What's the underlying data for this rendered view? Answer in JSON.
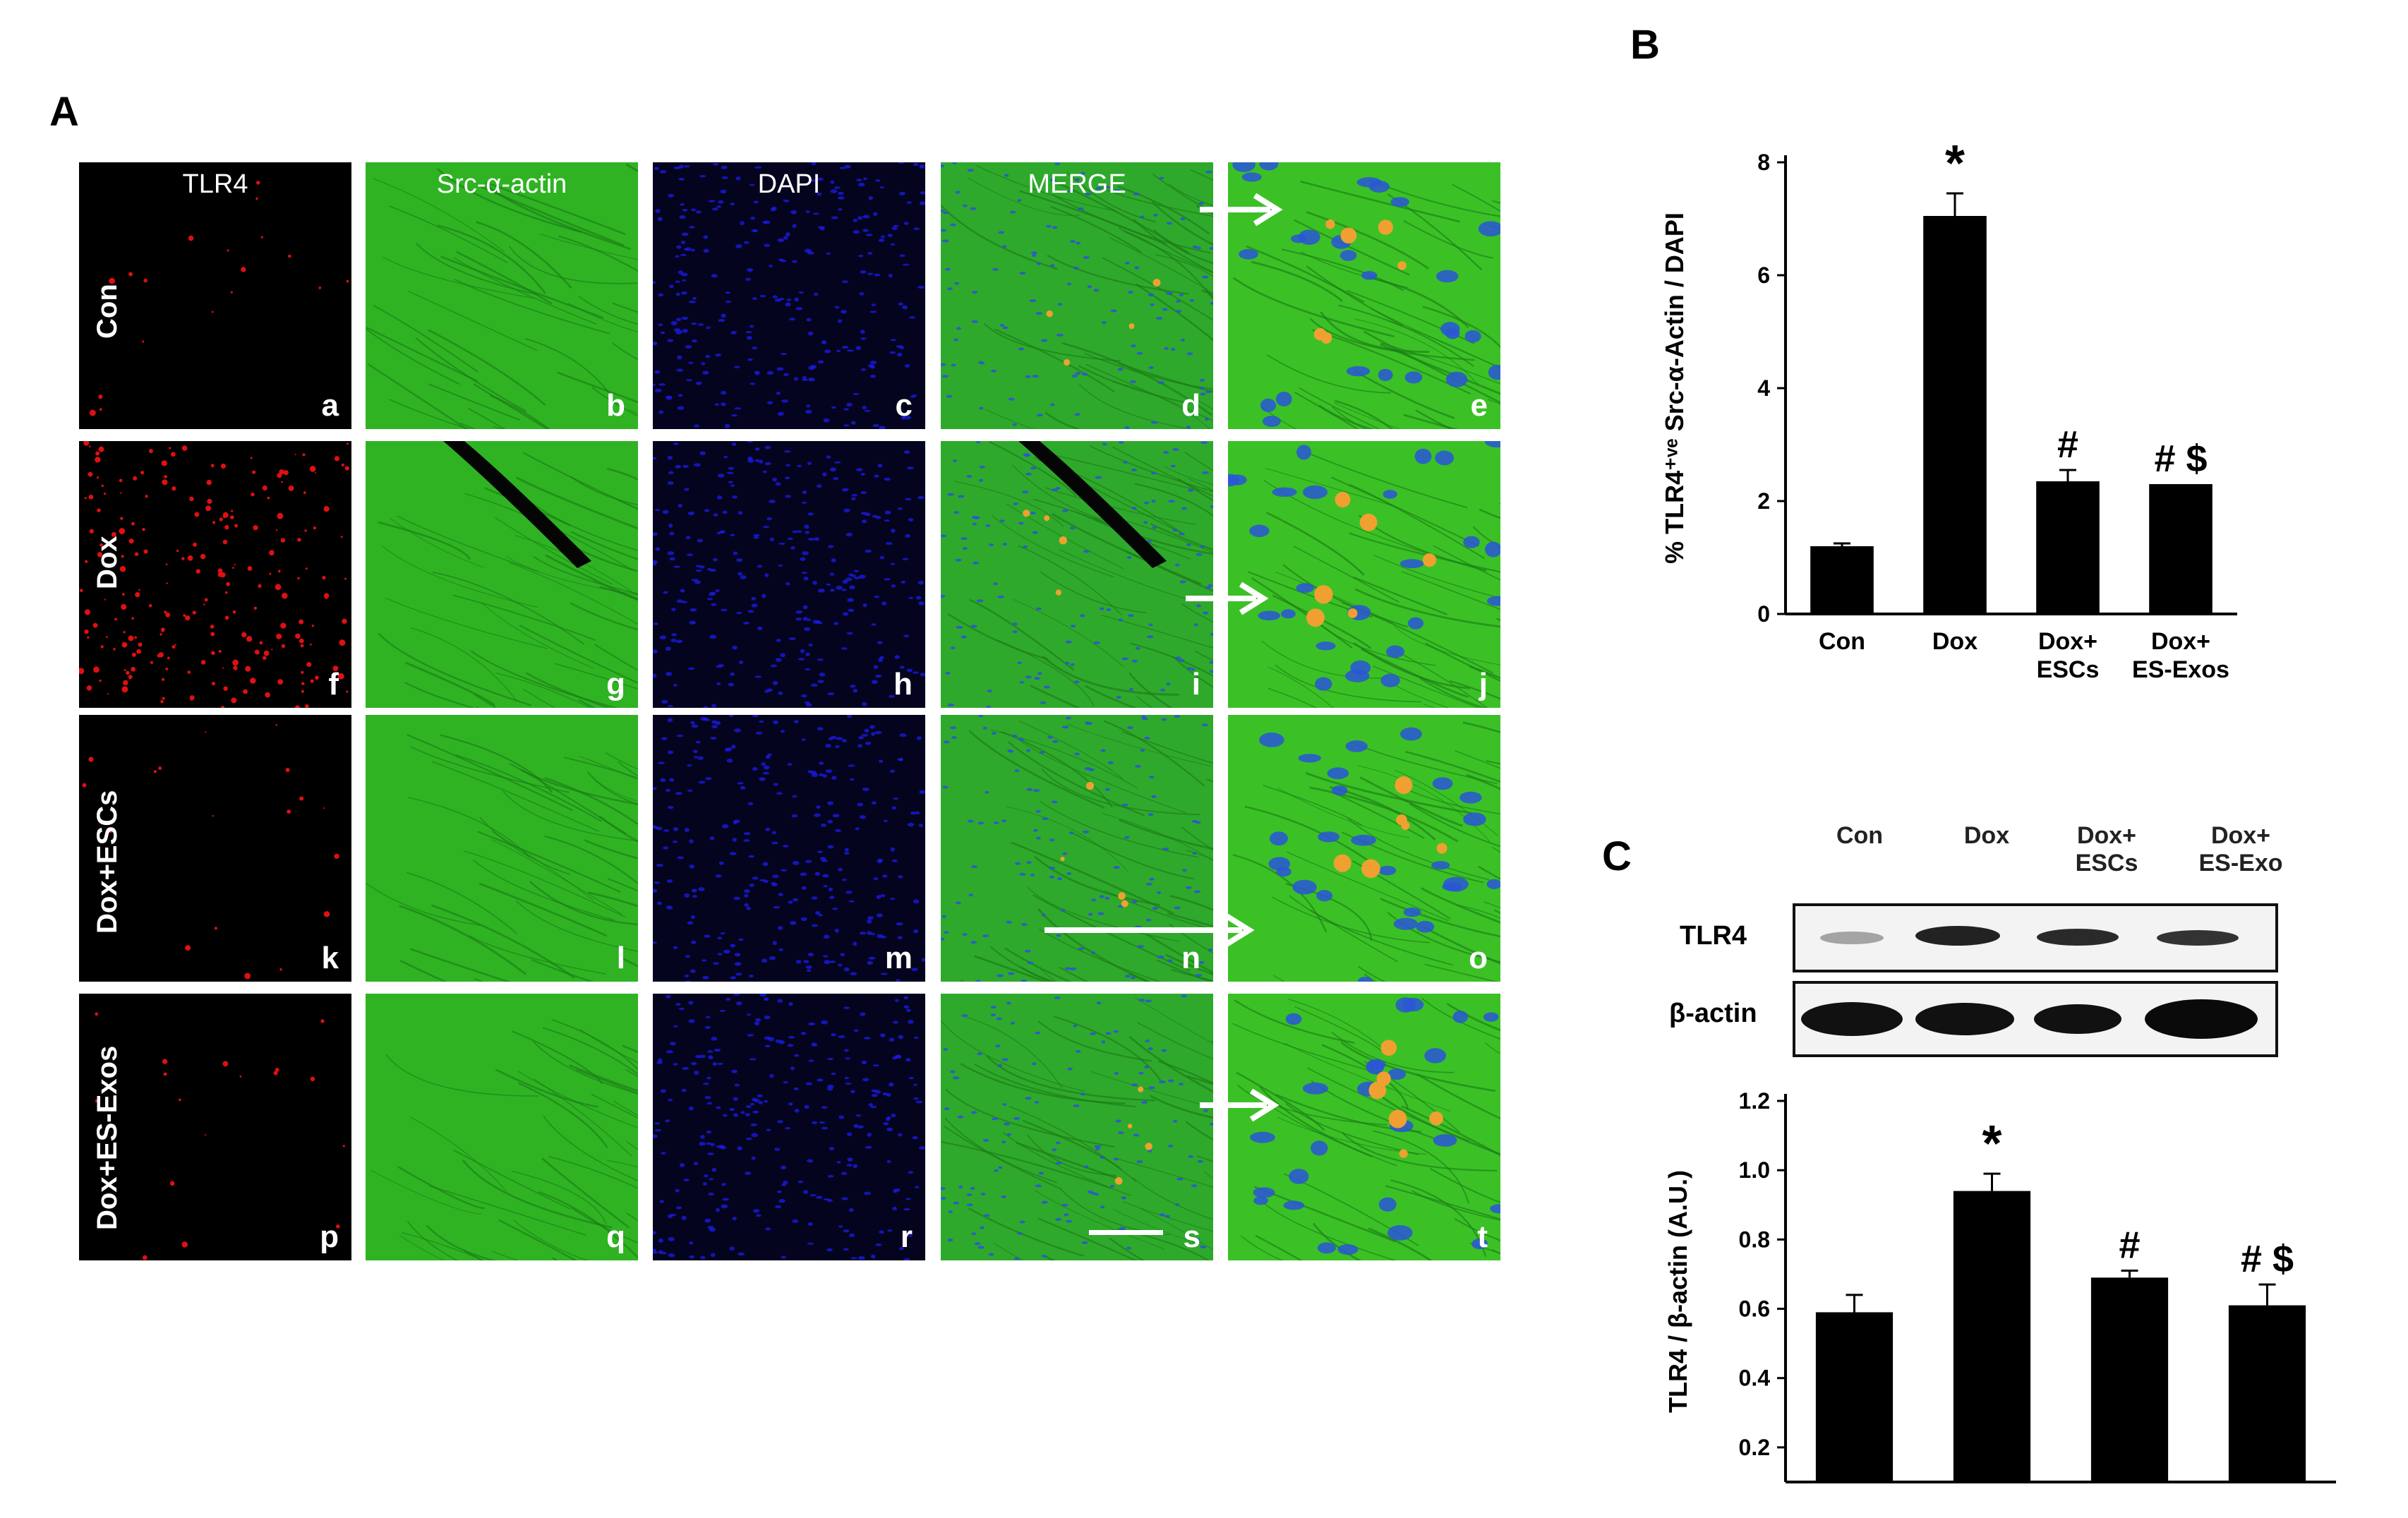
{
  "panel_a": {
    "letter": "A",
    "column_headers": [
      "TLR4",
      "Src-α-actin",
      "DAPI",
      "MERGE"
    ],
    "row_labels": [
      "Con",
      "Dox",
      "Dox+ESCs",
      "Dox+ES-Exos"
    ],
    "tile_letters": [
      [
        "a",
        "b",
        "c",
        "d",
        "e"
      ],
      [
        "f",
        "g",
        "h",
        "i",
        "j"
      ],
      [
        "k",
        "l",
        "m",
        "n",
        "o"
      ],
      [
        "p",
        "q",
        "r",
        "s",
        "t"
      ]
    ],
    "colors": {
      "tlr4_red": "#e01010",
      "actin_green": "#2fb323",
      "dapi_blue": "#1a1adf",
      "merge_orange": "#f0a030"
    }
  },
  "panel_b": {
    "letter": "B",
    "chart_data": {
      "type": "bar",
      "categories": [
        "Con",
        "Dox",
        "Dox+\nESCs",
        "Dox+\nES-Exos"
      ],
      "values": [
        1.2,
        7.05,
        2.35,
        2.3
      ],
      "errors": [
        0.05,
        0.4,
        0.2,
        0.0
      ],
      "markers": [
        "",
        "*",
        "#",
        "# $"
      ],
      "ylabel": "% TLR4⁺ᵛᵉ Src-α-Actin / DAPI",
      "ylim": [
        0,
        8
      ],
      "yticks": [
        0,
        2,
        4,
        6,
        8
      ],
      "bar_color": "#000000"
    }
  },
  "panel_c": {
    "letter": "C",
    "blot": {
      "lane_labels": [
        "Con",
        "Dox",
        "Dox+\nESCs",
        "Dox+\nES-Exo"
      ],
      "rows": [
        "TLR4",
        "β-actin"
      ]
    },
    "chart_data": {
      "type": "bar",
      "categories": [
        "Con",
        "Dox",
        "Dox+ESCs",
        "Dox+ES-Exo"
      ],
      "values": [
        0.59,
        0.94,
        0.69,
        0.61
      ],
      "errors": [
        0.05,
        0.05,
        0.02,
        0.06
      ],
      "markers": [
        "",
        "*",
        "#",
        "# $"
      ],
      "ylabel": "TLR4 / β-actin (A.U.)",
      "ylim": [
        0.1,
        1.2
      ],
      "yticks": [
        0.2,
        0.4,
        0.6,
        0.8,
        1.0,
        1.2
      ],
      "bar_color": "#000000"
    }
  }
}
